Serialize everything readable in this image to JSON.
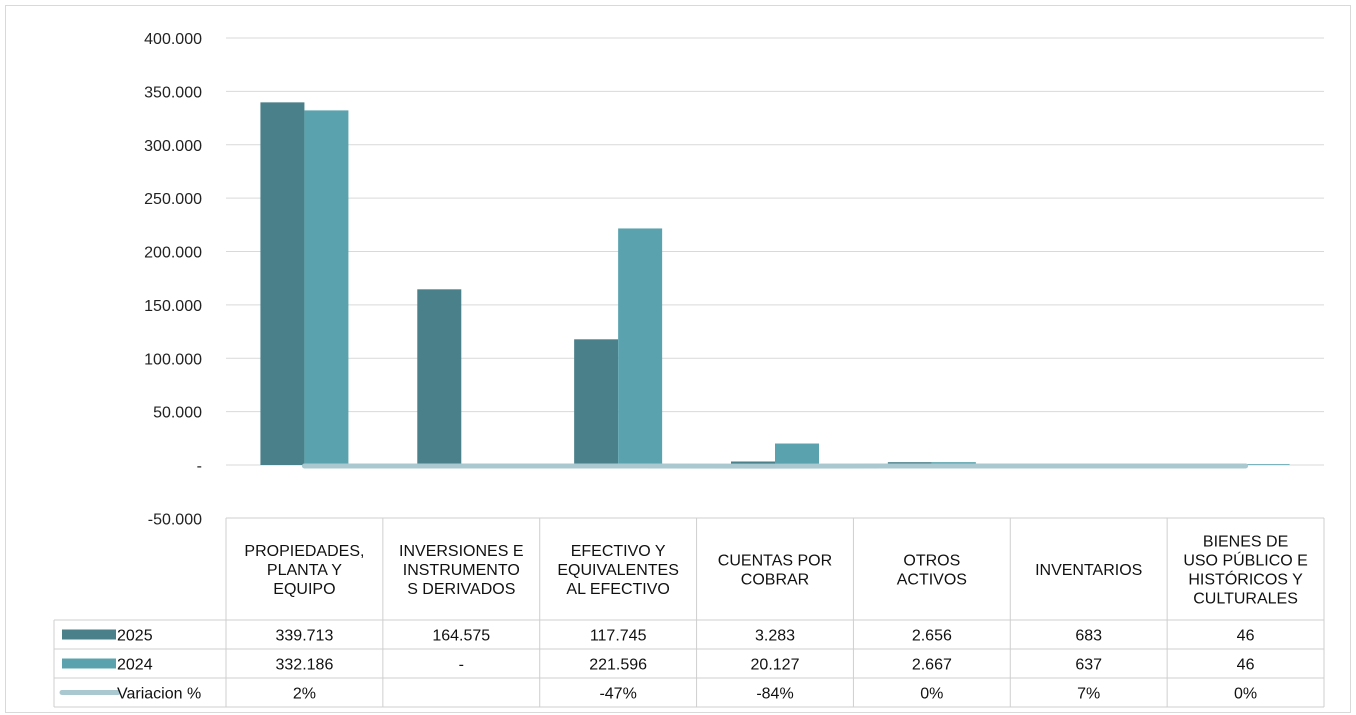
{
  "chart_data": {
    "type": "bar",
    "title": "",
    "categories": [
      [
        "PROPIEDADES,",
        "PLANTA Y",
        "EQUIPO"
      ],
      [
        "INVERSIONES E",
        "INSTRUMENTO",
        "S DERIVADOS"
      ],
      [
        "EFECTIVO Y",
        "EQUIVALENTES",
        "AL EFECTIVO"
      ],
      [
        "CUENTAS POR",
        "COBRAR"
      ],
      [
        "OTROS",
        "ACTIVOS"
      ],
      [
        "INVENTARIOS"
      ],
      [
        "BIENES DE",
        "USO PÚBLICO E",
        "HISTÓRICOS Y",
        "CULTURALES"
      ]
    ],
    "series": [
      {
        "name": "2025",
        "kind": "bar",
        "color": "#4a808a",
        "values": [
          339713,
          164575,
          117745,
          3283,
          2656,
          683,
          46
        ],
        "labels": [
          "339.713",
          "164.575",
          "117.745",
          "3.283",
          "2.656",
          "683",
          "46"
        ]
      },
      {
        "name": "2024",
        "kind": "bar",
        "color": "#5aa3ae",
        "values": [
          332186,
          0,
          221596,
          20127,
          2667,
          637,
          46
        ],
        "labels": [
          "332.186",
          "-",
          "221.596",
          "20.127",
          "2.667",
          "637",
          "46"
        ]
      },
      {
        "name": "Variacion %",
        "kind": "line",
        "color": "#a9c8cf",
        "values": [
          2,
          null,
          -47,
          -84,
          0,
          7,
          0
        ],
        "labels": [
          "2%",
          "",
          "-47%",
          "-84%",
          "0%",
          "7%",
          "0%"
        ]
      }
    ],
    "ylim": [
      -50000,
      400000
    ],
    "yticks": [
      {
        "value": 400000,
        "label": "400.000"
      },
      {
        "value": 350000,
        "label": "350.000"
      },
      {
        "value": 300000,
        "label": "300.000"
      },
      {
        "value": 250000,
        "label": "250.000"
      },
      {
        "value": 200000,
        "label": "200.000"
      },
      {
        "value": 150000,
        "label": "150.000"
      },
      {
        "value": 100000,
        "label": "100.000"
      },
      {
        "value": 50000,
        "label": "50.000"
      },
      {
        "value": 0,
        "label": "-"
      },
      {
        "value": -50000,
        "label": "-50.000"
      }
    ],
    "grid": true,
    "legend": "data-table"
  }
}
